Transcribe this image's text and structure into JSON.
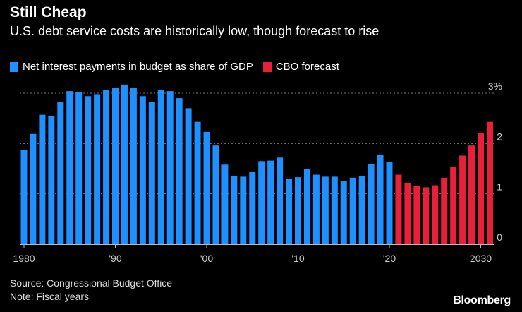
{
  "header": {
    "title": "Still Cheap",
    "subtitle": "U.S. debt service costs are historically low, though forecast to rise"
  },
  "legend": [
    {
      "label": "Net interest payments in budget as share of GDP",
      "color": "#1e90ff"
    },
    {
      "label": "CBO forecast",
      "color": "#e8203c"
    }
  ],
  "footer": {
    "source": "Source: Congressional Budget Office",
    "note": "Note: Fiscal years",
    "brand": "Bloomberg"
  },
  "chart_data": {
    "type": "bar",
    "title": "Net interest payments in budget as share of GDP",
    "ylim": [
      0,
      3
    ],
    "yticks": [
      0,
      1,
      2,
      3
    ],
    "ytick_labels": [
      "0",
      "1",
      "2",
      "3%"
    ],
    "xtick_labels": [
      {
        "year": 1980,
        "label": "1980"
      },
      {
        "year": 1990,
        "label": "'90"
      },
      {
        "year": 2000,
        "label": "'00"
      },
      {
        "year": 2010,
        "label": "'10"
      },
      {
        "year": 2020,
        "label": "'20"
      },
      {
        "year": 2030,
        "label": "2030"
      }
    ],
    "series": [
      {
        "name": "Net interest payments in budget as share of GDP",
        "color": "#1e90ff",
        "x": [
          1980,
          1981,
          1982,
          1983,
          1984,
          1985,
          1986,
          1987,
          1988,
          1989,
          1990,
          1991,
          1992,
          1993,
          1994,
          1995,
          1996,
          1997,
          1998,
          1999,
          2000,
          2001,
          2002,
          2003,
          2004,
          2005,
          2006,
          2007,
          2008,
          2009,
          2010,
          2011,
          2012,
          2013,
          2014,
          2015,
          2016,
          2017,
          2018,
          2019,
          2020
        ],
        "values": [
          1.87,
          2.19,
          2.57,
          2.55,
          2.82,
          3.04,
          3.02,
          2.94,
          2.98,
          3.06,
          3.11,
          3.17,
          3.11,
          2.94,
          2.83,
          3.06,
          3.04,
          2.9,
          2.7,
          2.43,
          2.23,
          1.96,
          1.58,
          1.36,
          1.34,
          1.44,
          1.65,
          1.66,
          1.72,
          1.3,
          1.33,
          1.5,
          1.38,
          1.34,
          1.34,
          1.26,
          1.32,
          1.36,
          1.59,
          1.77,
          1.64
        ]
      },
      {
        "name": "CBO forecast",
        "color": "#e8203c",
        "x": [
          2021,
          2022,
          2023,
          2024,
          2025,
          2026,
          2027,
          2028,
          2029,
          2030,
          2031
        ],
        "values": [
          1.38,
          1.22,
          1.16,
          1.13,
          1.17,
          1.32,
          1.53,
          1.76,
          1.96,
          2.2,
          2.43
        ]
      }
    ]
  }
}
